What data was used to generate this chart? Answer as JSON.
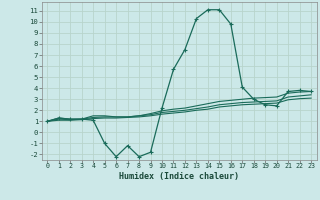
{
  "xlabel": "Humidex (Indice chaleur)",
  "bg_color": "#cce8e8",
  "grid_color": "#b8d4cc",
  "line_color": "#1a6b5a",
  "x": [
    0,
    1,
    2,
    3,
    4,
    5,
    6,
    7,
    8,
    9,
    10,
    11,
    12,
    13,
    14,
    15,
    16,
    17,
    18,
    19,
    20,
    21,
    22,
    23
  ],
  "main_y": [
    1,
    1.3,
    1.2,
    1.2,
    1.1,
    -1.0,
    -2.2,
    -1.2,
    -2.2,
    -1.8,
    2.2,
    5.7,
    7.5,
    10.3,
    11.1,
    11.1,
    9.8,
    4.1,
    3.0,
    2.5,
    2.4,
    3.7,
    3.8,
    3.7
  ],
  "line2_y": [
    1,
    1.3,
    1.2,
    1.2,
    1.5,
    1.5,
    1.4,
    1.4,
    1.5,
    1.7,
    1.95,
    2.1,
    2.2,
    2.4,
    2.6,
    2.8,
    2.9,
    3.0,
    3.1,
    3.15,
    3.2,
    3.55,
    3.65,
    3.7
  ],
  "line3_y": [
    1,
    1.2,
    1.15,
    1.2,
    1.35,
    1.4,
    1.4,
    1.4,
    1.5,
    1.6,
    1.8,
    1.9,
    2.0,
    2.15,
    2.3,
    2.5,
    2.6,
    2.7,
    2.75,
    2.8,
    2.85,
    3.2,
    3.3,
    3.4
  ],
  "line4_y": [
    1,
    1.1,
    1.1,
    1.15,
    1.25,
    1.3,
    1.3,
    1.35,
    1.4,
    1.5,
    1.65,
    1.75,
    1.85,
    2.0,
    2.1,
    2.3,
    2.4,
    2.5,
    2.55,
    2.6,
    2.65,
    2.95,
    3.05,
    3.1
  ],
  "ylim": [
    -2.5,
    11.8
  ],
  "xlim": [
    -0.5,
    23.5
  ],
  "yticks": [
    -2,
    -1,
    0,
    1,
    2,
    3,
    4,
    5,
    6,
    7,
    8,
    9,
    10,
    11
  ],
  "xticks": [
    0,
    1,
    2,
    3,
    4,
    5,
    6,
    7,
    8,
    9,
    10,
    11,
    12,
    13,
    14,
    15,
    16,
    17,
    18,
    19,
    20,
    21,
    22,
    23
  ]
}
